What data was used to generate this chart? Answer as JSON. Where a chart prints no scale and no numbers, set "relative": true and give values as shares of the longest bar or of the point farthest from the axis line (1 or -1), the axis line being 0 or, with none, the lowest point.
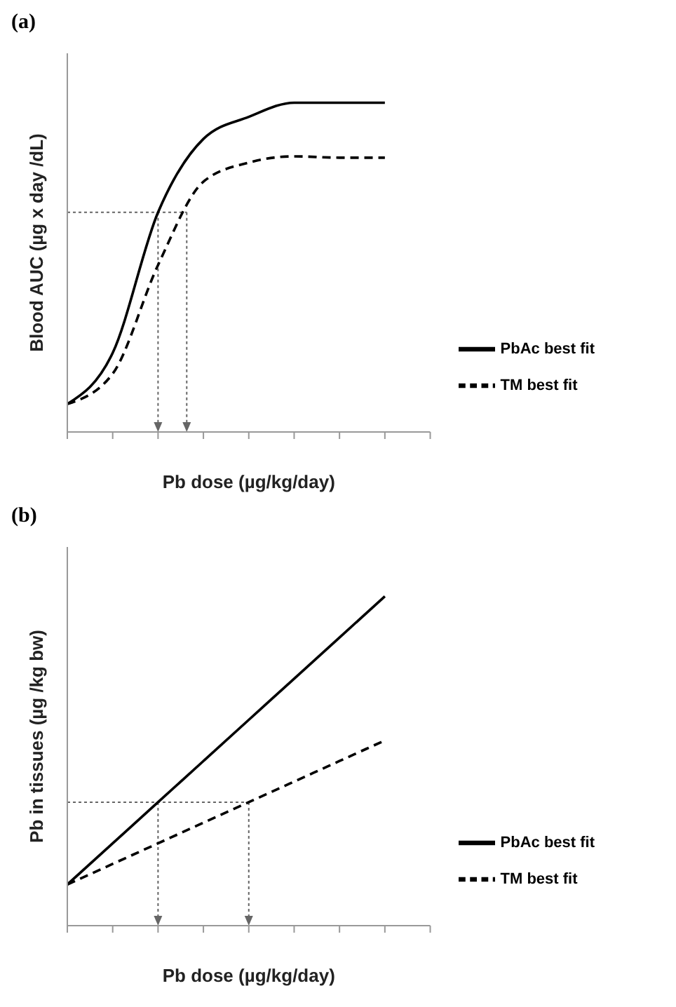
{
  "chart_data": [
    {
      "type": "line",
      "title": "(a)",
      "xlabel": "Pb dose (µg/kg/day)",
      "ylabel": "Blood AUC (µg x day /dL)",
      "relative": true,
      "categories": [
        null,
        null,
        null,
        null,
        null,
        null,
        null,
        null,
        null
      ],
      "legend": "bottom right",
      "marker": "none",
      "grid": false,
      "series": [
        {
          "name": "PbAc best fit",
          "color": "#000000",
          "line_style": "solid",
          "values": [
            0.085,
            0.24,
            0.667,
            0.89,
            0.957,
            1,
            1,
            1,
            null
          ]
        },
        {
          "name": "TM best fit",
          "color": "#000000",
          "line_style": "dashed",
          "values": [
            0.085,
            0.177,
            0.507,
            0.76,
            0.818,
            0.837,
            0.833,
            0.833,
            null
          ]
        }
      ],
      "ref_lines": [
        {
          "axis": "y",
          "value": 0.667,
          "color": "#666666",
          "line_style": "dotted"
        }
      ]
    },
    {
      "type": "line",
      "title": "(b)",
      "xlabel": "Pb dose (µg/kg/day)",
      "ylabel": "Pb in tissues  (µg /kg bw)",
      "relative": true,
      "categories": [
        null,
        null,
        null,
        null,
        null,
        null,
        null,
        null,
        null
      ],
      "legend": "bottom right",
      "marker": "none",
      "grid": false,
      "series": [
        {
          "name": "PbAc best fit",
          "color": "#000000",
          "line_style": "solid",
          "values": [
            0.125,
            0.25,
            0.375,
            0.5,
            0.625,
            0.75,
            0.875,
            1,
            null
          ]
        },
        {
          "name": "TM best fit",
          "color": "#000000",
          "line_style": "dashed",
          "values": [
            0.125,
            0.1875,
            0.25,
            0.3125,
            0.375,
            0.4375,
            0.5,
            0.5625,
            null
          ]
        }
      ],
      "ref_lines": [
        {
          "axis": "y",
          "value": 0.375,
          "color": "#666666",
          "line_style": "dotted"
        }
      ]
    }
  ]
}
